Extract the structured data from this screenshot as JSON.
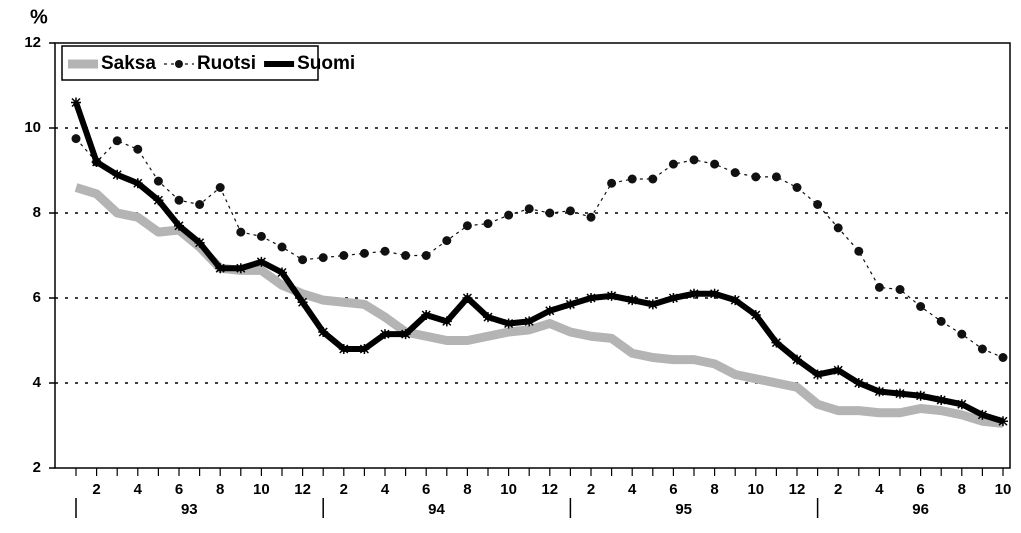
{
  "chart_data": {
    "type": "line",
    "y_label": "%",
    "categories": [
      null,
      "2",
      null,
      "4",
      null,
      "6",
      null,
      "8",
      null,
      "10",
      null,
      "12",
      null,
      "2",
      null,
      "4",
      null,
      "6",
      null,
      "8",
      null,
      "10",
      null,
      "12",
      null,
      "2",
      null,
      "4",
      null,
      "6",
      null,
      "8",
      null,
      "10",
      null,
      "12",
      null,
      "2",
      null,
      "4",
      null,
      "6",
      null,
      "8",
      null,
      "10"
    ],
    "years": [
      "93",
      "94",
      "95",
      "96"
    ],
    "series": [
      {
        "name": "Saksa",
        "color": "#b4b4b4",
        "values": [
          8.6,
          8.45,
          8.0,
          7.9,
          7.55,
          7.6,
          7.2,
          6.7,
          6.65,
          6.65,
          6.3,
          6.1,
          5.95,
          5.9,
          5.85,
          5.55,
          5.2,
          5.1,
          5.0,
          5.0,
          5.1,
          5.2,
          5.25,
          5.4,
          5.2,
          5.1,
          5.05,
          4.7,
          4.6,
          4.55,
          4.55,
          4.45,
          4.2,
          4.1,
          4.0,
          3.9,
          3.5,
          3.35,
          3.35,
          3.3,
          3.3,
          3.4,
          3.35,
          3.25,
          3.1,
          3.05
        ]
      },
      {
        "name": "Ruotsi",
        "color": "#111111",
        "values": [
          9.75,
          9.2,
          9.7,
          9.5,
          8.75,
          8.3,
          8.2,
          8.6,
          7.55,
          7.45,
          7.2,
          6.9,
          6.95,
          7.0,
          7.05,
          7.1,
          7.0,
          7.0,
          7.35,
          7.7,
          7.75,
          7.95,
          8.1,
          8.0,
          8.05,
          7.9,
          8.7,
          8.8,
          8.8,
          9.15,
          9.25,
          9.15,
          8.95,
          8.85,
          8.85,
          8.6,
          8.2,
          7.65,
          7.1,
          6.25,
          6.2,
          5.8,
          5.45,
          5.15,
          4.8,
          4.6
        ]
      },
      {
        "name": "Suomi",
        "color": "#000000",
        "values": [
          10.6,
          9.2,
          8.9,
          8.7,
          8.3,
          7.7,
          7.3,
          6.7,
          6.7,
          6.85,
          6.6,
          5.9,
          5.2,
          4.8,
          4.8,
          5.15,
          5.15,
          5.6,
          5.45,
          6.0,
          5.55,
          5.4,
          5.45,
          5.7,
          5.85,
          6.0,
          6.05,
          5.95,
          5.85,
          6.0,
          6.1,
          6.1,
          5.95,
          5.6,
          4.95,
          4.55,
          4.2,
          4.3,
          4.0,
          3.8,
          3.75,
          3.7,
          3.6,
          3.5,
          3.25,
          3.1
        ]
      }
    ],
    "ylim": [
      2,
      12
    ],
    "yticks": [
      2,
      4,
      6,
      8,
      10,
      12
    ],
    "grid": true,
    "legend": "upper left"
  }
}
